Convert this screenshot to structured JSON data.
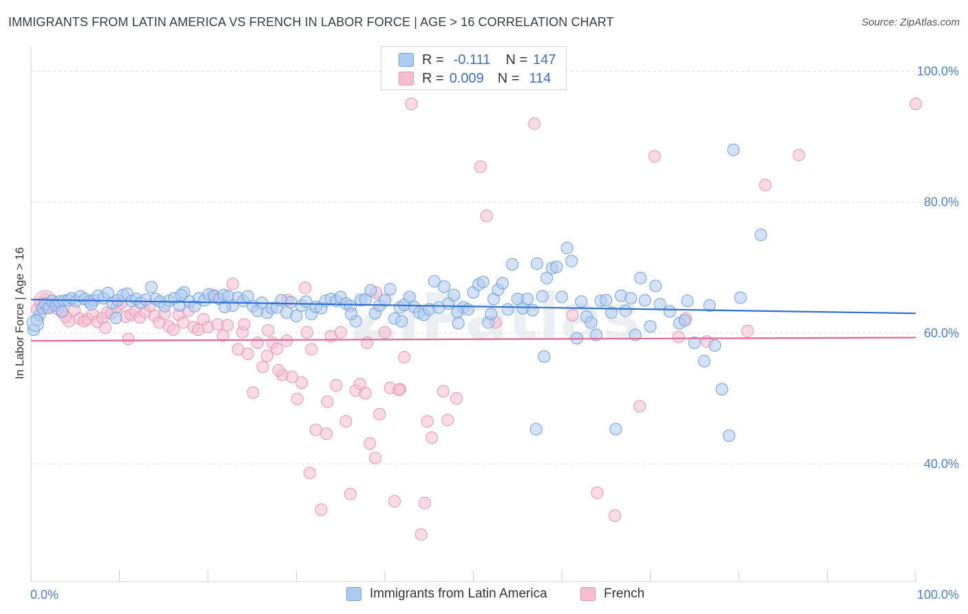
{
  "title": "IMMIGRANTS FROM LATIN AMERICA VS FRENCH IN LABOR FORCE | AGE > 16 CORRELATION CHART",
  "source": "Source: ZipAtlas.com",
  "watermark": "ZIPatlas",
  "legend": {
    "r_label": "R =",
    "n_label": "N =",
    "series": [
      {
        "r": "-0.111",
        "n": "147"
      },
      {
        "r": "0.009",
        "n": "114"
      }
    ]
  },
  "colors": {
    "blue_fill": "#aecbf2",
    "blue_stroke": "#6f9fe0",
    "blue_line": "#2f6fd0",
    "pink_fill": "#f6bcd0",
    "pink_stroke": "#e993b2",
    "pink_line": "#e0628f",
    "tick_text": "#4a7fd6",
    "grid": "#d9dde3"
  },
  "chart_data": {
    "type": "scatter",
    "title": "IMMIGRANTS FROM LATIN AMERICA VS FRENCH IN LABOR FORCE | AGE > 16 CORRELATION CHART",
    "xlabel": "",
    "ylabel": "In Labor Force | Age > 16",
    "xlim": [
      0,
      100
    ],
    "ylim": [
      22,
      103
    ],
    "x_tick_labels": [
      "0.0%",
      "100.0%"
    ],
    "y_ticks": [
      40,
      60,
      80,
      100
    ],
    "y_tick_labels": [
      "40.0%",
      "60.0%",
      "80.0%",
      "100.0%"
    ],
    "grid": true,
    "legend_position": "top-center",
    "series": [
      {
        "name": "Immigrants from Latin America",
        "r": -0.111,
        "n": 147,
        "trend": {
          "x": [
            0,
            100
          ],
          "y": [
            65.1,
            63.0
          ]
        },
        "points": [
          [
            0.3,
            60.5
          ],
          [
            0.7,
            62.0
          ],
          [
            1.0,
            62.8
          ],
          [
            1.3,
            63.8
          ],
          [
            1.6,
            64.5
          ],
          [
            2.0,
            63.8
          ],
          [
            2.4,
            64.9
          ],
          [
            2.8,
            64.2
          ],
          [
            3.2,
            64.8
          ],
          [
            3.7,
            64.9
          ],
          [
            4.2,
            65.0
          ],
          [
            4.6,
            65.3
          ],
          [
            5.1,
            64.9
          ],
          [
            5.6,
            65.6
          ],
          [
            6.1,
            65.2
          ],
          [
            6.6,
            64.8
          ],
          [
            7.1,
            65.0
          ],
          [
            7.6,
            65.7
          ],
          [
            8.2,
            65.3
          ],
          [
            8.7,
            66.1
          ],
          [
            9.2,
            64.6
          ],
          [
            9.8,
            65.0
          ],
          [
            10.4,
            65.8
          ],
          [
            10.9,
            66.0
          ],
          [
            11.4,
            64.9
          ],
          [
            11.9,
            65.2
          ],
          [
            12.4,
            64.6
          ],
          [
            13.0,
            65.1
          ],
          [
            13.6,
            67.0
          ],
          [
            14.1,
            65.2
          ],
          [
            14.6,
            64.8
          ],
          [
            15.1,
            64.1
          ],
          [
            15.6,
            64.9
          ],
          [
            16.2,
            65.3
          ],
          [
            16.8,
            64.2
          ],
          [
            17.3,
            66.2
          ],
          [
            17.9,
            64.8
          ],
          [
            18.5,
            64.1
          ],
          [
            19.0,
            65.3
          ],
          [
            19.6,
            65.0
          ],
          [
            20.1,
            65.9
          ],
          [
            20.7,
            65.6
          ],
          [
            21.3,
            65.2
          ],
          [
            21.8,
            65.8
          ],
          [
            22.3,
            65.6
          ],
          [
            22.8,
            64.2
          ],
          [
            23.4,
            65.4
          ],
          [
            24.0,
            64.9
          ],
          [
            24.5,
            65.6
          ],
          [
            25.1,
            64.1
          ],
          [
            25.6,
            63.4
          ],
          [
            26.1,
            64.6
          ],
          [
            26.7,
            63.1
          ],
          [
            27.2,
            63.8
          ],
          [
            27.8,
            63.9
          ],
          [
            28.3,
            65.0
          ],
          [
            28.9,
            63.1
          ],
          [
            29.4,
            64.7
          ],
          [
            30.0,
            62.6
          ],
          [
            30.6,
            64.2
          ],
          [
            31.1,
            64.8
          ],
          [
            31.7,
            62.9
          ],
          [
            32.2,
            64.0
          ],
          [
            32.8,
            63.8
          ],
          [
            33.3,
            64.9
          ],
          [
            33.9,
            65.2
          ],
          [
            34.5,
            64.9
          ],
          [
            35.0,
            65.5
          ],
          [
            35.6,
            64.5
          ],
          [
            36.1,
            64.1
          ],
          [
            36.7,
            61.8
          ],
          [
            37.3,
            65.0
          ],
          [
            37.8,
            65.1
          ],
          [
            38.4,
            66.5
          ],
          [
            38.9,
            63.0
          ],
          [
            39.4,
            64.2
          ],
          [
            40.0,
            65.0
          ],
          [
            40.6,
            66.7
          ],
          [
            41.1,
            62.2
          ],
          [
            41.7,
            63.9
          ],
          [
            42.2,
            64.3
          ],
          [
            42.8,
            65.5
          ],
          [
            43.3,
            64.0
          ],
          [
            43.9,
            63.1
          ],
          [
            44.4,
            62.8
          ],
          [
            45.0,
            63.6
          ],
          [
            45.6,
            67.9
          ],
          [
            46.1,
            63.9
          ],
          [
            46.7,
            67.1
          ],
          [
            47.2,
            64.5
          ],
          [
            47.8,
            65.8
          ],
          [
            48.3,
            61.5
          ],
          [
            48.9,
            63.9
          ],
          [
            49.4,
            63.6
          ],
          [
            50.0,
            66.2
          ],
          [
            50.6,
            67.4
          ],
          [
            51.1,
            67.8
          ],
          [
            51.7,
            61.6
          ],
          [
            52.3,
            65.2
          ],
          [
            52.8,
            66.6
          ],
          [
            53.3,
            67.6
          ],
          [
            53.9,
            63.6
          ],
          [
            54.4,
            70.5
          ],
          [
            55.0,
            65.2
          ],
          [
            55.6,
            63.8
          ],
          [
            56.1,
            65.2
          ],
          [
            56.7,
            63.5
          ],
          [
            57.2,
            70.6
          ],
          [
            57.8,
            65.6
          ],
          [
            58.3,
            68.4
          ],
          [
            58.9,
            69.9
          ],
          [
            59.4,
            70.1
          ],
          [
            60.0,
            65.5
          ],
          [
            60.6,
            73.0
          ],
          [
            61.1,
            71.0
          ],
          [
            61.7,
            59.2
          ],
          [
            62.2,
            64.8
          ],
          [
            62.8,
            62.5
          ],
          [
            63.3,
            61.6
          ],
          [
            63.9,
            59.7
          ],
          [
            64.4,
            64.9
          ],
          [
            65.0,
            65.0
          ],
          [
            65.6,
            63.1
          ],
          [
            66.1,
            45.3
          ],
          [
            66.7,
            65.7
          ],
          [
            67.2,
            63.4
          ],
          [
            67.8,
            65.3
          ],
          [
            68.3,
            59.7
          ],
          [
            68.9,
            68.4
          ],
          [
            69.4,
            65.0
          ],
          [
            70.0,
            61.0
          ],
          [
            70.6,
            67.2
          ],
          [
            71.1,
            64.4
          ],
          [
            72.2,
            63.3
          ],
          [
            73.3,
            61.5
          ],
          [
            74.2,
            64.9
          ],
          [
            75.0,
            58.5
          ],
          [
            76.1,
            55.7
          ],
          [
            77.3,
            58.1
          ],
          [
            78.1,
            51.4
          ],
          [
            78.9,
            44.3
          ],
          [
            79.4,
            88.0
          ],
          [
            80.2,
            65.4
          ],
          [
            82.5,
            75.0
          ],
          [
            58.0,
            56.4
          ],
          [
            57.1,
            45.3
          ],
          [
            76.7,
            64.2
          ],
          [
            73.9,
            61.9
          ],
          [
            48.2,
            63.2
          ],
          [
            52.0,
            62.9
          ],
          [
            41.9,
            61.8
          ],
          [
            36.2,
            62.9
          ],
          [
            21.9,
            64.0
          ],
          [
            17.0,
            65.8
          ],
          [
            9.6,
            62.3
          ],
          [
            6.8,
            64.4
          ],
          [
            3.5,
            63.3
          ]
        ]
      },
      {
        "name": "French",
        "r": 0.009,
        "n": 114,
        "trend": {
          "x": [
            0,
            100
          ],
          "y": [
            58.8,
            59.3
          ]
        },
        "points": [
          [
            0.7,
            63.6
          ],
          [
            1.2,
            64.6
          ],
          [
            1.6,
            65.2
          ],
          [
            2.1,
            64.0
          ],
          [
            2.5,
            64.6
          ],
          [
            3.0,
            63.7
          ],
          [
            3.5,
            63.2
          ],
          [
            4.3,
            61.8
          ],
          [
            4.9,
            63.5
          ],
          [
            5.5,
            62.2
          ],
          [
            6.0,
            61.8
          ],
          [
            6.4,
            62.1
          ],
          [
            7.0,
            62.8
          ],
          [
            7.5,
            61.7
          ],
          [
            8.1,
            62.3
          ],
          [
            8.6,
            63.1
          ],
          [
            9.1,
            63.0
          ],
          [
            9.7,
            64.0
          ],
          [
            10.2,
            64.5
          ],
          [
            10.7,
            62.5
          ],
          [
            11.3,
            62.8
          ],
          [
            11.8,
            63.3
          ],
          [
            12.3,
            62.4
          ],
          [
            12.9,
            63.2
          ],
          [
            13.4,
            64.2
          ],
          [
            14.0,
            62.6
          ],
          [
            14.5,
            61.6
          ],
          [
            15.1,
            62.9
          ],
          [
            15.6,
            61.0
          ],
          [
            16.1,
            60.5
          ],
          [
            16.7,
            62.8
          ],
          [
            17.2,
            61.6
          ],
          [
            17.8,
            63.4
          ],
          [
            18.4,
            60.9
          ],
          [
            18.9,
            60.5
          ],
          [
            19.5,
            62.1
          ],
          [
            20.0,
            60.9
          ],
          [
            20.6,
            65.8
          ],
          [
            21.1,
            61.3
          ],
          [
            21.7,
            59.6
          ],
          [
            22.2,
            61.2
          ],
          [
            22.8,
            67.5
          ],
          [
            23.4,
            57.5
          ],
          [
            23.9,
            60.1
          ],
          [
            24.5,
            56.8
          ],
          [
            25.1,
            50.9
          ],
          [
            25.6,
            58.5
          ],
          [
            26.2,
            54.8
          ],
          [
            26.7,
            56.5
          ],
          [
            27.3,
            58.5
          ],
          [
            27.8,
            57.6
          ],
          [
            28.4,
            53.6
          ],
          [
            28.9,
            58.8
          ],
          [
            29.5,
            53.3
          ],
          [
            30.1,
            49.9
          ],
          [
            30.6,
            52.4
          ],
          [
            31.2,
            60.1
          ],
          [
            31.7,
            57.5
          ],
          [
            32.2,
            45.2
          ],
          [
            32.8,
            33.0
          ],
          [
            33.4,
            44.6
          ],
          [
            33.9,
            59.5
          ],
          [
            34.5,
            52.0
          ],
          [
            35.0,
            60.1
          ],
          [
            35.6,
            46.5
          ],
          [
            36.1,
            35.4
          ],
          [
            36.7,
            51.2
          ],
          [
            37.2,
            52.2
          ],
          [
            37.8,
            50.8
          ],
          [
            38.3,
            43.1
          ],
          [
            38.9,
            40.9
          ],
          [
            39.4,
            47.6
          ],
          [
            40.0,
            60.1
          ],
          [
            40.6,
            51.6
          ],
          [
            41.1,
            34.3
          ],
          [
            41.7,
            51.4
          ],
          [
            42.2,
            56.3
          ],
          [
            43.0,
            95.0
          ],
          [
            44.1,
            29.2
          ],
          [
            44.8,
            46.5
          ],
          [
            45.3,
            44.0
          ],
          [
            46.6,
            51.1
          ],
          [
            47.1,
            46.7
          ],
          [
            48.1,
            50.0
          ],
          [
            50.8,
            85.4
          ],
          [
            51.5,
            77.9
          ],
          [
            56.9,
            92.0
          ],
          [
            64.0,
            35.6
          ],
          [
            66.0,
            32.1
          ],
          [
            68.8,
            48.8
          ],
          [
            70.5,
            87.0
          ],
          [
            73.2,
            59.4
          ],
          [
            74.0,
            62.2
          ],
          [
            76.4,
            58.7
          ],
          [
            81.0,
            60.3
          ],
          [
            83.0,
            82.6
          ],
          [
            86.8,
            87.2
          ],
          [
            100.0,
            95.0
          ],
          [
            31.5,
            38.6
          ],
          [
            31.0,
            66.9
          ],
          [
            38.0,
            58.5
          ],
          [
            39.0,
            66.2
          ],
          [
            41.6,
            51.3
          ],
          [
            33.5,
            49.5
          ],
          [
            28.0,
            54.3
          ],
          [
            24.1,
            61.3
          ],
          [
            11.0,
            59.1
          ],
          [
            3.9,
            62.5
          ],
          [
            8.4,
            60.8
          ],
          [
            26.8,
            60.4
          ],
          [
            29.0,
            65.0
          ],
          [
            44.5,
            34.0
          ],
          [
            61.2,
            62.7
          ],
          [
            52.5,
            61.6
          ]
        ]
      }
    ]
  },
  "bottom_legend": [
    {
      "label": "Immigrants from Latin America"
    },
    {
      "label": "French"
    }
  ]
}
